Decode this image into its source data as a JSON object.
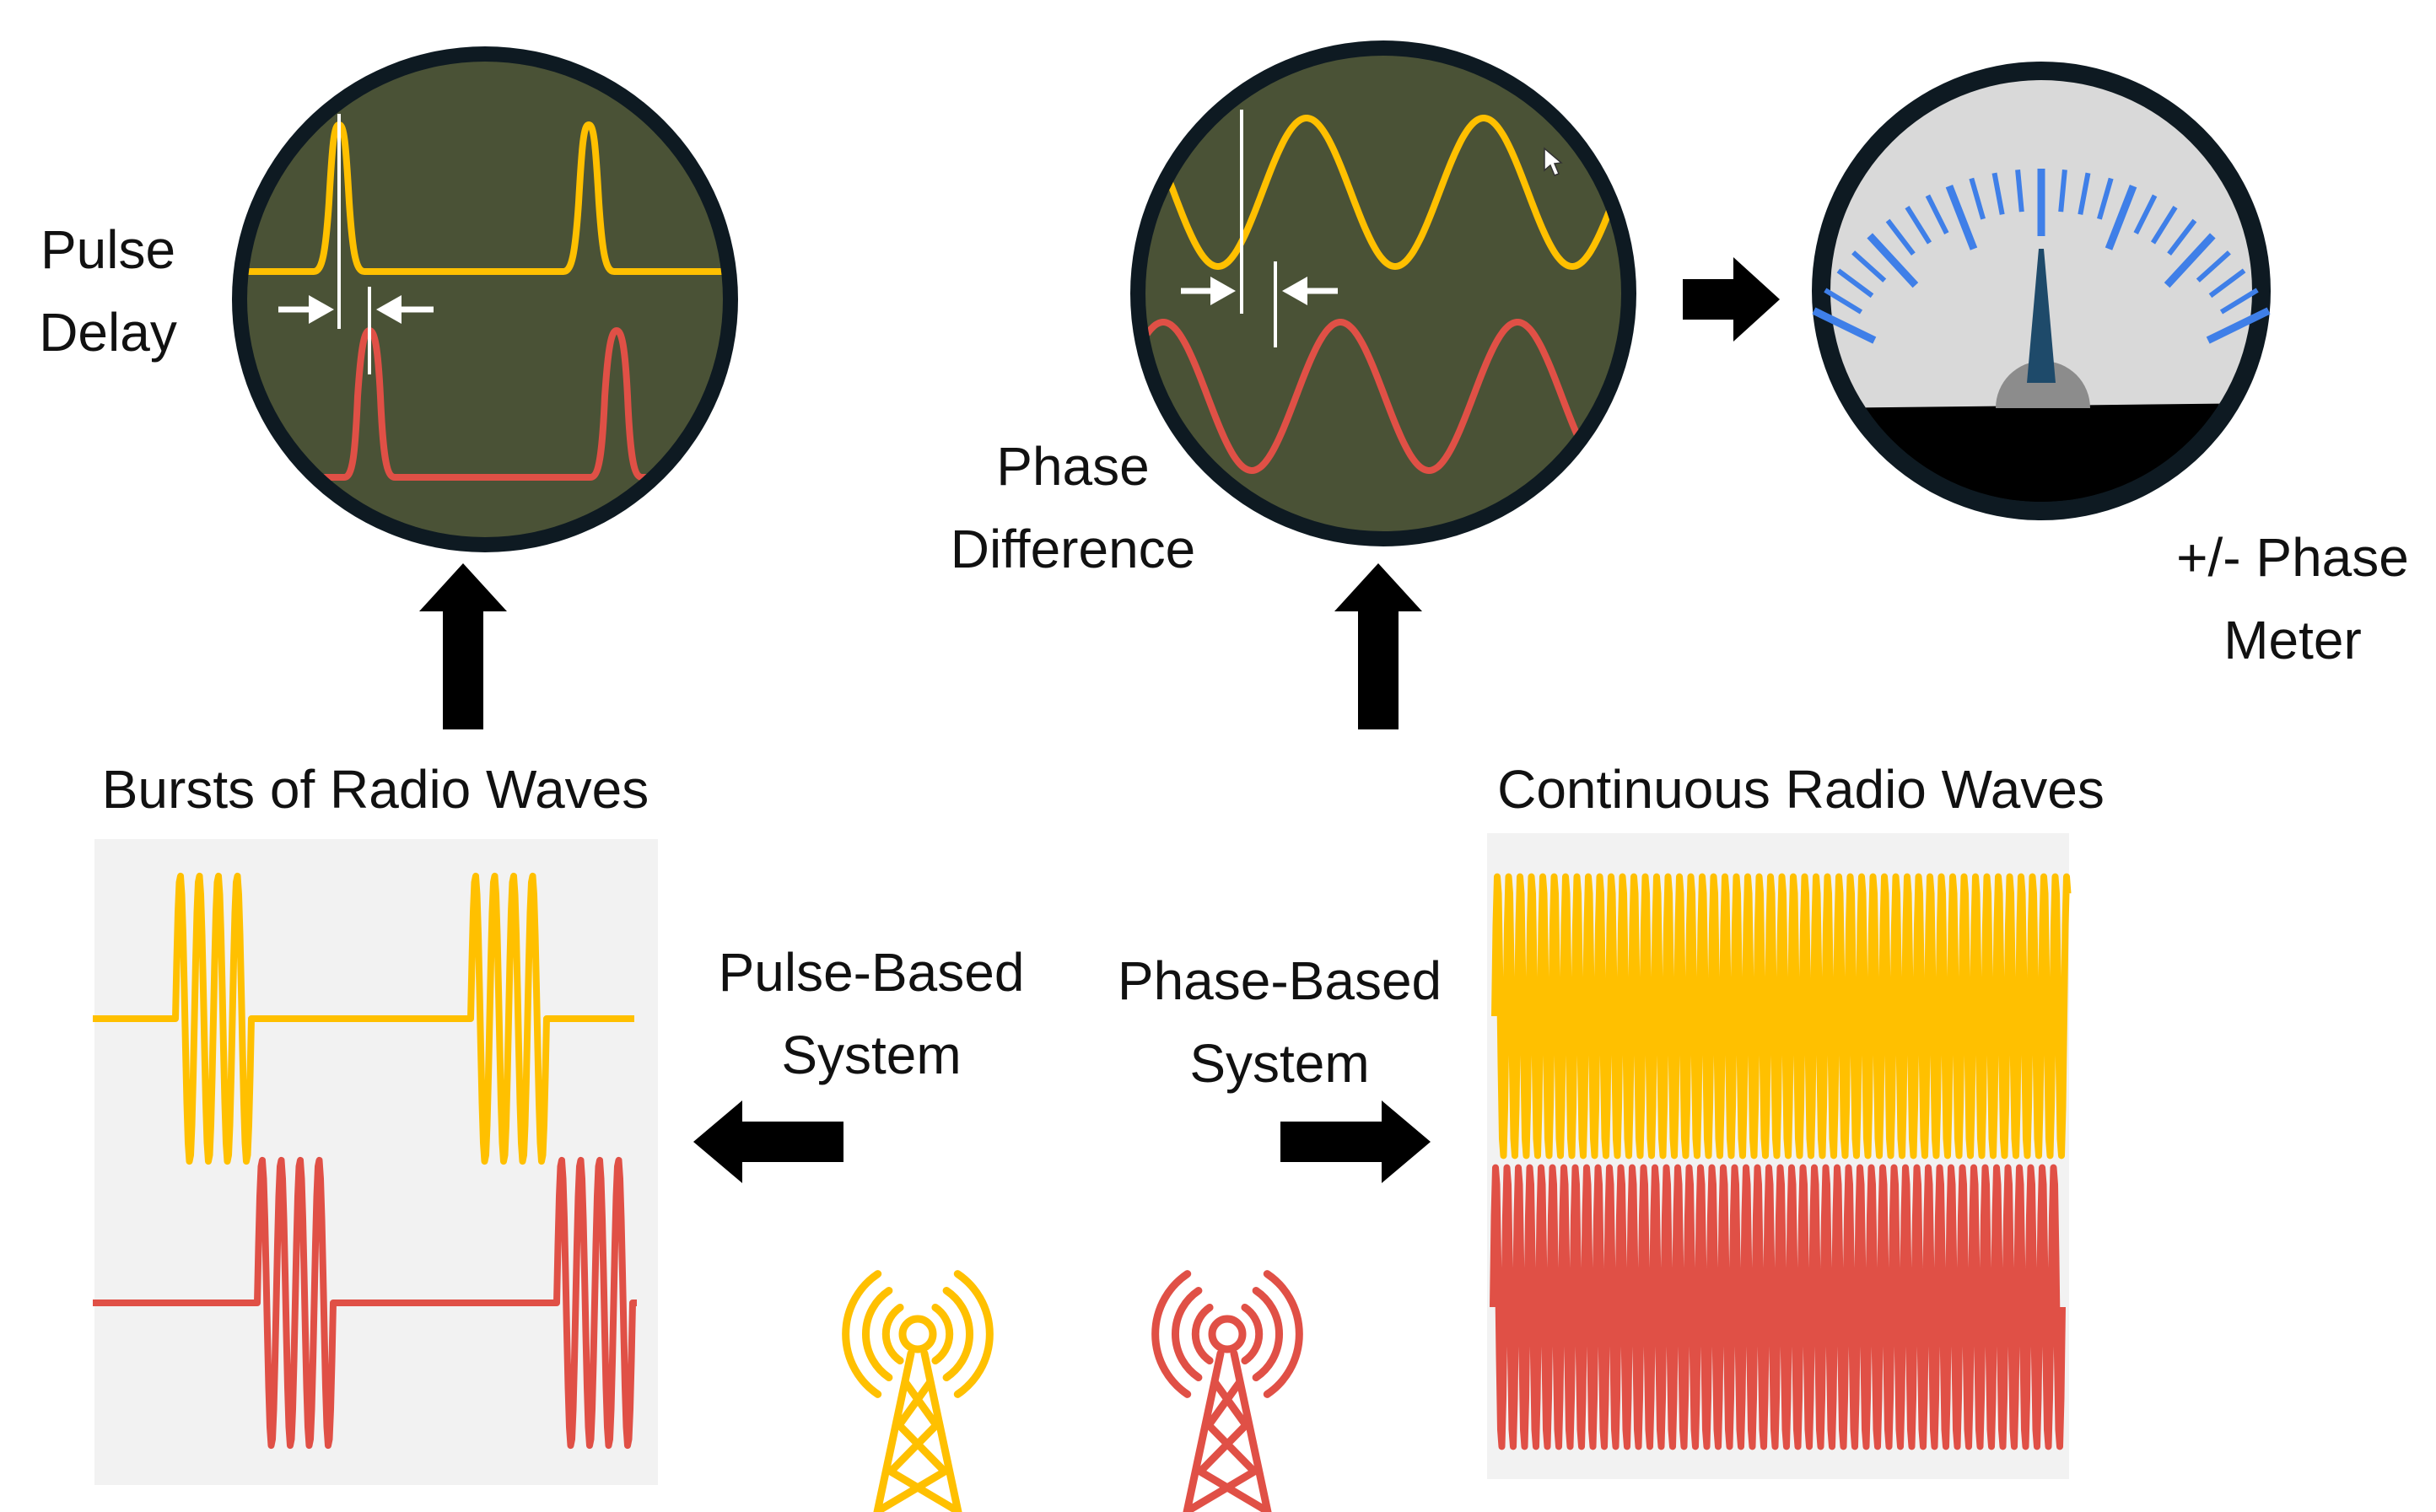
{
  "labels": {
    "pulse_delay_line1": "Pulse",
    "pulse_delay_line2": "Delay",
    "phase_difference_line1": "Phase",
    "phase_difference_line2": "Difference",
    "phase_meter_line1": "+/- Phase",
    "phase_meter_line2": "Meter",
    "bursts_title": "Bursts of Radio Waves",
    "continuous_title": "Continuous Radio Waves",
    "pulse_system_line1": "Pulse-Based",
    "pulse_system_line2": "System",
    "phase_system_line1": "Phase-Based",
    "phase_system_line2": "System"
  },
  "colors": {
    "yellow": "#FFC000",
    "red": "#E05046",
    "scope_screen": "#4A5236",
    "scope_bezel": "#0E1A22",
    "meter_face": "#D9D9D9",
    "meter_ticks": "#3F7FE8",
    "panel_bg": "#F2F2F2"
  },
  "icons": {
    "left_tower": "radio-tower-icon",
    "right_tower": "radio-tower-icon",
    "arrows": "arrow-icon"
  }
}
